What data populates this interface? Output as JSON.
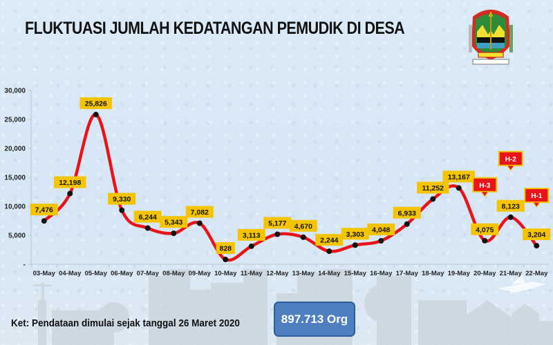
{
  "header": {
    "title": "FLUKTUASI JUMLAH KEDATANGAN PEMUDIK DI DESA",
    "logo": "central-java-province-emblem"
  },
  "footer": {
    "note": "Ket: Pendataan dimulai sejak tanggal 26 Maret 2020",
    "total": "897.713 Org"
  },
  "colors": {
    "line": "#e8141a",
    "marker": "#111111",
    "label_bg": "#f5c400",
    "callout_bg": "#e8141a",
    "callout_border": "#f5c400",
    "total_box": "#4f7fc1"
  },
  "chart_data": {
    "type": "line",
    "title": "FLUKTUASI JUMLAH KEDATANGAN PEMUDIK DI DESA",
    "xlabel": "",
    "ylabel": "",
    "categories": [
      "03-May",
      "04-May",
      "05-May",
      "06-May",
      "07-May",
      "08-May",
      "09-May",
      "10-May",
      "11-May",
      "12-May",
      "13-May",
      "14-May",
      "15-May",
      "16-May",
      "17-May",
      "18-May",
      "19-May",
      "20-May",
      "21-May",
      "22-May"
    ],
    "series": [
      {
        "name": "Kedatangan Pemudik",
        "values": [
          7476,
          12198,
          25826,
          9330,
          6244,
          5343,
          7082,
          828,
          3113,
          5177,
          4670,
          2244,
          3303,
          4048,
          6933,
          11252,
          13167,
          4075,
          8123,
          3204
        ]
      }
    ],
    "data_labels": [
      "7,476",
      "12,198",
      "25,826",
      "9,330",
      "6,244",
      "5,343",
      "7,082",
      "828",
      "3,113",
      "5,177",
      "4,670",
      "2,244",
      "3,303",
      "4,048",
      "6,933",
      "11,252",
      "13,167",
      "4,075",
      "8,123",
      "3,204"
    ],
    "yticks": [
      0,
      5000,
      10000,
      15000,
      20000,
      25000,
      30000
    ],
    "ytick_labels": [
      "-",
      "5,000",
      "10,000",
      "15,000",
      "20,000",
      "25,000",
      "30,000"
    ],
    "ylim": [
      0,
      30000
    ],
    "grid": false,
    "smooth": true,
    "annotations": [
      {
        "category": "20-May",
        "text": "H-3"
      },
      {
        "category": "21-May",
        "text": "H-2"
      },
      {
        "category": "22-May",
        "text": "H-1"
      }
    ],
    "legend": null
  }
}
